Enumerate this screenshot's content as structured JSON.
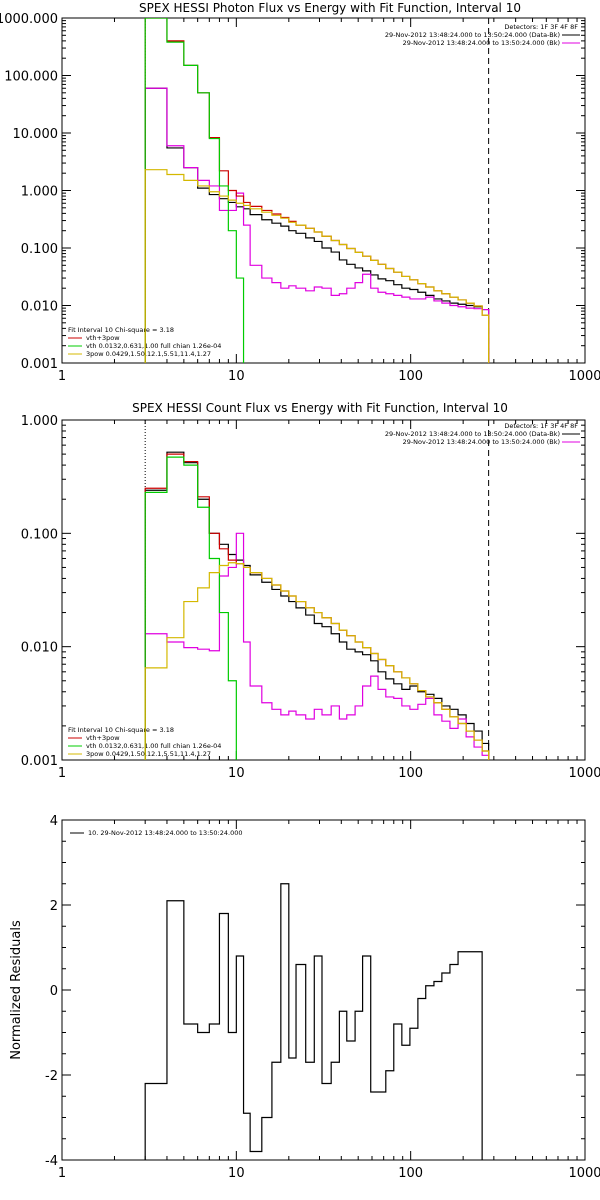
{
  "chart_data": [
    {
      "type": "line",
      "step": true,
      "title": "SPEX HESSI Photon Flux vs Energy with Fit Function, Interval 10",
      "xscale": "log",
      "yscale": "log",
      "xlim": [
        1,
        1000
      ],
      "ylim": [
        0.001,
        1000
      ],
      "xticks": [
        "1",
        "10",
        "100",
        "1000"
      ],
      "yticks": [
        "0.001",
        "0.010",
        "0.100",
        "1.000",
        "10.000",
        "100.000",
        "1000.000"
      ],
      "header_lines": [
        "Detectors: 1F 3F 4F 8F",
        "29-Nov-2012 13:48:24.000 to 13:50:24.000 (Data-Bk)",
        "29-Nov-2012 13:48:24.000 to 13:50:24.000 (Bk)"
      ],
      "legend": {
        "position": "bottom-left",
        "lines": [
          "Fit Interval 10   Chi-square = 3.18",
          "vth+3pow",
          "vth 0.0132,0.631,1.00  full chian 1.26e-04",
          "3pow 0.0429,1.50,12.1,5.51,11.4,1.27"
        ]
      },
      "vlines": [
        {
          "x": 3.0,
          "style": "dotted"
        },
        {
          "x": 280,
          "style": "dashed"
        }
      ],
      "edges": [
        3.0,
        4.0,
        5.0,
        6.0,
        7.0,
        8.0,
        9.0,
        10.0,
        11.0,
        12.0,
        14.0,
        16.0,
        18.0,
        20.0,
        22.0,
        25.0,
        28.0,
        31.0,
        35.0,
        39.0,
        43.0,
        48.0,
        53.0,
        59.0,
        65.0,
        72.0,
        80.0,
        89.0,
        99.0,
        110.0,
        122.0,
        136.0,
        151.0,
        168.0,
        187.0,
        208.0,
        231.0,
        257.0,
        280.0
      ],
      "series": [
        {
          "name": "Data-Bk",
          "color": "#000000",
          "values": [
            60,
            5.5,
            2.5,
            1.1,
            0.85,
            0.72,
            0.62,
            0.52,
            0.48,
            0.38,
            0.31,
            0.27,
            0.24,
            0.2,
            0.18,
            0.15,
            0.13,
            0.1,
            0.085,
            0.062,
            0.052,
            0.045,
            0.04,
            0.034,
            0.029,
            0.027,
            0.023,
            0.02,
            0.019,
            0.017,
            0.015,
            0.013,
            0.012,
            0.011,
            0.0105,
            0.01,
            0.0095,
            0.0085
          ]
        },
        {
          "name": "Bk",
          "color": "#e000e0",
          "values": [
            60,
            6,
            2.5,
            1.5,
            1.2,
            0.45,
            0.45,
            0.9,
            0.25,
            0.05,
            0.03,
            0.025,
            0.02,
            0.022,
            0.02,
            0.018,
            0.021,
            0.02,
            0.015,
            0.016,
            0.02,
            0.025,
            0.035,
            0.02,
            0.017,
            0.016,
            0.015,
            0.014,
            0.013,
            0.013,
            0.014,
            0.012,
            0.011,
            0.01,
            0.0095,
            0.009,
            0.0088,
            0.0085
          ]
        },
        {
          "name": "vth+3pow",
          "color": "#cc0000",
          "values": [
            1000,
            400,
            150,
            50,
            8.3,
            2.2,
            1.0,
            0.8,
            0.62,
            0.53,
            0.45,
            0.39,
            0.34,
            0.29,
            0.25,
            0.22,
            0.19,
            0.16,
            0.135,
            0.115,
            0.098,
            0.084,
            0.072,
            0.061,
            0.052,
            0.044,
            0.038,
            0.032,
            0.028,
            0.024,
            0.021,
            0.018,
            0.016,
            0.014,
            0.0125,
            0.011,
            0.0098,
            0.0068
          ]
        },
        {
          "name": "vth",
          "color": "#00cc00",
          "values": [
            1000,
            380,
            150,
            50,
            8,
            1.2,
            0.2,
            0.03,
            0.0008,
            0.0008,
            0.0008,
            0.0008,
            0.0008,
            0.0008,
            0.0008,
            0.0008,
            0.0008,
            0.0008,
            0.0008,
            0.0008,
            0.0008,
            0.0008,
            0.0008,
            0.0008,
            0.0008,
            0.0008,
            0.0008,
            0.0008,
            0.0008,
            0.0008,
            0.0008,
            0.0008,
            0.0008,
            0.0008,
            0.0008,
            0.0008,
            0.0008,
            0.0008
          ]
        },
        {
          "name": "3pow",
          "color": "#d4b800",
          "values": [
            2.3,
            1.9,
            1.5,
            1.2,
            0.95,
            0.8,
            0.68,
            0.6,
            0.55,
            0.48,
            0.42,
            0.37,
            0.33,
            0.28,
            0.25,
            0.22,
            0.19,
            0.16,
            0.135,
            0.115,
            0.098,
            0.084,
            0.072,
            0.061,
            0.052,
            0.044,
            0.038,
            0.032,
            0.028,
            0.024,
            0.021,
            0.018,
            0.016,
            0.014,
            0.0125,
            0.011,
            0.0098,
            0.0068
          ]
        }
      ]
    },
    {
      "type": "line",
      "step": true,
      "title": "SPEX HESSI Count Flux vs Energy with Fit Function, Interval 10",
      "xscale": "log",
      "yscale": "log",
      "xlim": [
        1,
        1000
      ],
      "ylim": [
        0.001,
        1
      ],
      "xticks": [
        "1",
        "10",
        "100",
        "1000"
      ],
      "yticks": [
        "0.001",
        "0.010",
        "0.100",
        "1.000"
      ],
      "header_lines": [
        "Detectors: 1F 3F 4F 8F",
        "29-Nov-2012 13:48:24.000 to 13:50:24.000 (Data-Bk)",
        "29-Nov-2012 13:48:24.000 to 13:50:24.000 (Bk)"
      ],
      "legend": {
        "position": "bottom-left",
        "lines": [
          "Fit Interval 10   Chi-square = 3.18",
          "vth+3pow",
          "vth 0.0132,0.631,1.00  full chian 1.26e-04",
          "3pow 0.0429,1.50,12.1,5.51,11.4,1.27"
        ]
      },
      "vlines": [
        {
          "x": 3.0,
          "style": "dotted"
        },
        {
          "x": 280,
          "style": "dashed"
        }
      ],
      "edges": [
        3.0,
        4.0,
        5.0,
        6.0,
        7.0,
        8.0,
        9.0,
        10.0,
        11.0,
        12.0,
        14.0,
        16.0,
        18.0,
        20.0,
        22.0,
        25.0,
        28.0,
        31.0,
        35.0,
        39.0,
        43.0,
        48.0,
        53.0,
        59.0,
        65.0,
        72.0,
        80.0,
        89.0,
        99.0,
        110.0,
        122.0,
        136.0,
        151.0,
        168.0,
        187.0,
        208.0,
        231.0,
        257.0,
        280.0
      ],
      "series": [
        {
          "name": "Data-Bk",
          "color": "#000000",
          "values": [
            0.24,
            0.52,
            0.42,
            0.2,
            0.1,
            0.08,
            0.065,
            0.058,
            0.052,
            0.043,
            0.037,
            0.032,
            0.028,
            0.025,
            0.022,
            0.019,
            0.016,
            0.015,
            0.013,
            0.011,
            0.0095,
            0.009,
            0.0085,
            0.0075,
            0.006,
            0.0052,
            0.0047,
            0.0042,
            0.0045,
            0.004,
            0.0038,
            0.0035,
            0.003,
            0.0028,
            0.0025,
            0.0021,
            0.0018,
            0.0014
          ]
        },
        {
          "name": "Bk",
          "color": "#e000e0",
          "values": [
            0.013,
            0.011,
            0.0098,
            0.0095,
            0.0092,
            0.042,
            0.05,
            0.1,
            0.011,
            0.0045,
            0.0032,
            0.0028,
            0.0025,
            0.0027,
            0.0025,
            0.0023,
            0.0028,
            0.0025,
            0.003,
            0.0023,
            0.0025,
            0.003,
            0.0045,
            0.0055,
            0.0042,
            0.0036,
            0.0035,
            0.003,
            0.0028,
            0.0031,
            0.0035,
            0.0025,
            0.0022,
            0.0019,
            0.0023,
            0.0016,
            0.0013,
            0.0011
          ]
        },
        {
          "name": "vth+3pow",
          "color": "#cc0000",
          "values": [
            0.25,
            0.5,
            0.43,
            0.21,
            0.1,
            0.073,
            0.058,
            0.054,
            0.05,
            0.045,
            0.04,
            0.035,
            0.031,
            0.028,
            0.025,
            0.022,
            0.02,
            0.018,
            0.016,
            0.014,
            0.0125,
            0.011,
            0.0098,
            0.0087,
            0.0077,
            0.0068,
            0.006,
            0.0053,
            0.0047,
            0.0041,
            0.0036,
            0.0032,
            0.0028,
            0.0024,
            0.0021,
            0.0018,
            0.0015,
            0.0012
          ]
        },
        {
          "name": "vth",
          "color": "#00cc00",
          "values": [
            0.23,
            0.47,
            0.4,
            0.17,
            0.06,
            0.02,
            0.005,
            0.0008,
            0.0008,
            0.0008,
            0.0008,
            0.0008,
            0.0008,
            0.0008,
            0.0008,
            0.0008,
            0.0008,
            0.0008,
            0.0008,
            0.0008,
            0.0008,
            0.0008,
            0.0008,
            0.0008,
            0.0008,
            0.0008,
            0.0008,
            0.0008,
            0.0008,
            0.0008,
            0.0008,
            0.0008,
            0.0008,
            0.0008,
            0.0008,
            0.0008,
            0.0008,
            0.0008
          ]
        },
        {
          "name": "3pow",
          "color": "#d4b800",
          "values": [
            0.0065,
            0.012,
            0.025,
            0.033,
            0.045,
            0.052,
            0.055,
            0.054,
            0.05,
            0.045,
            0.04,
            0.035,
            0.031,
            0.028,
            0.025,
            0.022,
            0.02,
            0.018,
            0.016,
            0.014,
            0.0125,
            0.011,
            0.0098,
            0.0087,
            0.0077,
            0.0068,
            0.006,
            0.0053,
            0.0047,
            0.0041,
            0.0036,
            0.0032,
            0.0028,
            0.0024,
            0.0021,
            0.0018,
            0.0015,
            0.0012
          ]
        }
      ]
    },
    {
      "type": "line",
      "step": true,
      "title": "",
      "xscale": "log",
      "yscale": "linear",
      "xlim": [
        1,
        1000
      ],
      "ylim": [
        -4,
        4
      ],
      "xticks": [
        "1",
        "10",
        "100",
        "1000"
      ],
      "yticks": [
        "-4",
        "-2",
        "0",
        "2",
        "4"
      ],
      "ylabel": "Normalized Residuals",
      "legend": {
        "position": "top-left",
        "lines": [
          "10. 29-Nov-2012 13:48:24.000 to 13:50:24.000"
        ]
      },
      "edges": [
        3.0,
        4.0,
        5.0,
        6.0,
        7.0,
        8.0,
        9.0,
        10.0,
        11.0,
        12.0,
        14.0,
        16.0,
        18.0,
        20.0,
        22.0,
        25.0,
        28.0,
        31.0,
        35.0,
        39.0,
        43.0,
        48.0,
        53.0,
        59.0,
        65.0,
        72.0,
        80.0,
        89.0,
        99.0,
        110.0,
        122.0,
        136.0,
        151.0,
        168.0,
        187.0,
        208.0,
        231.0,
        257.0,
        280.0
      ],
      "series": [
        {
          "name": "10. 29-Nov-2012 13:48:24.000 to 13:50:24.000",
          "color": "#000000",
          "values": [
            -2.2,
            2.1,
            -0.8,
            -1.0,
            -0.8,
            1.8,
            -1.0,
            0.8,
            -2.9,
            -3.8,
            -3.0,
            -1.7,
            2.5,
            -1.6,
            0.6,
            -1.7,
            0.8,
            -2.2,
            -1.7,
            -0.5,
            -1.2,
            -0.5,
            0.8,
            -2.4,
            -2.4,
            -1.9,
            -0.8,
            -1.3,
            -0.9,
            -0.2,
            0.1,
            0.2,
            0.4,
            0.6,
            0.9,
            0.9,
            0.9,
            -4.1
          ]
        }
      ]
    }
  ]
}
